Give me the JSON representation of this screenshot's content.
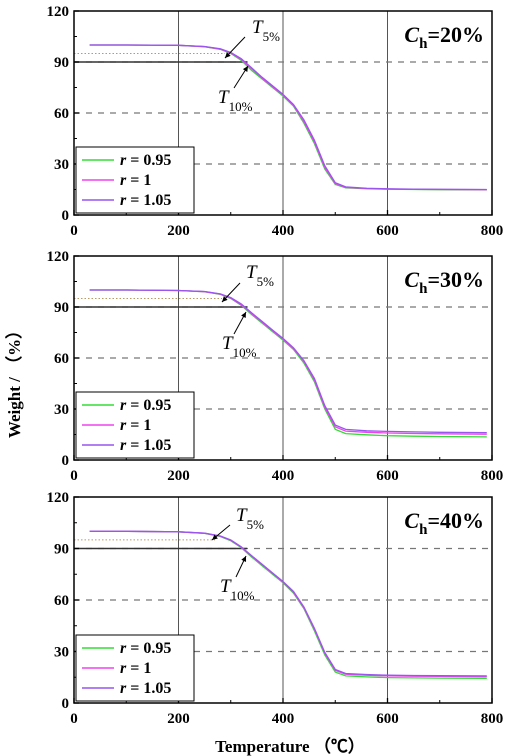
{
  "figure": {
    "ylabel": "Weight / （%）",
    "xlabel": "Temperature （℃）",
    "legend_prefix": "r",
    "panel_symbol": "C",
    "panel_symbol_sub": "h",
    "t5_symbol": "T",
    "t5_sub": "5%",
    "t10_symbol": "T",
    "t10_sub": "10%"
  },
  "colors": {
    "r_0_95": "#33dd33",
    "r_1": "#ee44ee",
    "r_1_05": "#9955ee",
    "grid_vertical": "#555555",
    "grid_dashed": "#777777",
    "ref_line_90": "#333333",
    "ref_line_95": "#bb9966"
  },
  "chart_data": [
    {
      "type": "line",
      "panel_value": "=20%",
      "xlim": [
        0,
        800
      ],
      "ylim": [
        0,
        120
      ],
      "xticks": [
        0,
        200,
        400,
        600,
        800
      ],
      "yticks": [
        0,
        30,
        60,
        90,
        120
      ],
      "grid": {
        "vertical_solid_at": [
          200,
          400,
          600
        ],
        "horizontal_dashed_at": [
          30,
          60,
          90
        ]
      },
      "legend_position": "bottom-left",
      "series": [
        {
          "name": "r = 0.95",
          "x": [
            30,
            100,
            200,
            250,
            280,
            300,
            320,
            340,
            360,
            380,
            400,
            420,
            440,
            460,
            480,
            500,
            520,
            560,
            600,
            650,
            700,
            790
          ],
          "y": [
            100,
            100,
            99.8,
            99,
            97.5,
            95,
            91,
            85,
            80,
            75,
            70,
            64,
            54,
            42,
            27,
            18,
            16,
            15.5,
            15.2,
            15,
            14.9,
            14.8
          ]
        },
        {
          "name": "r = 1",
          "x": [
            30,
            100,
            200,
            250,
            280,
            300,
            320,
            340,
            360,
            380,
            400,
            420,
            440,
            460,
            480,
            500,
            520,
            560,
            600,
            650,
            700,
            790
          ],
          "y": [
            100,
            100,
            99.8,
            99,
            97.6,
            95.3,
            91.5,
            86,
            80.5,
            75.5,
            70.5,
            64.5,
            55,
            43,
            28,
            18.5,
            16.2,
            15.6,
            15.3,
            15.1,
            15,
            14.9
          ]
        },
        {
          "name": "r = 1.05",
          "x": [
            30,
            100,
            200,
            250,
            280,
            300,
            320,
            340,
            360,
            380,
            400,
            420,
            440,
            460,
            480,
            500,
            520,
            560,
            600,
            650,
            700,
            790
          ],
          "y": [
            100,
            100,
            99.8,
            99.1,
            97.8,
            95.6,
            92,
            86.5,
            81,
            76,
            71,
            65,
            56,
            44,
            29,
            19,
            16.5,
            15.7,
            15.4,
            15.2,
            15.1,
            15
          ]
        }
      ]
    },
    {
      "type": "line",
      "panel_value": "=30%",
      "xlim": [
        0,
        800
      ],
      "ylim": [
        0,
        120
      ],
      "xticks": [
        0,
        200,
        400,
        600,
        800
      ],
      "yticks": [
        0,
        30,
        60,
        90,
        120
      ],
      "grid": {
        "vertical_solid_at": [
          200,
          400,
          600
        ],
        "horizontal_dashed_at": [
          30,
          60,
          90
        ]
      },
      "legend_position": "bottom-left",
      "series": [
        {
          "name": "r = 0.95",
          "x": [
            30,
            100,
            200,
            250,
            280,
            300,
            320,
            340,
            360,
            380,
            400,
            420,
            440,
            460,
            480,
            500,
            520,
            560,
            600,
            650,
            700,
            790
          ],
          "y": [
            100,
            100,
            99.7,
            99,
            97.5,
            95,
            91,
            85.5,
            80.5,
            75.5,
            70.5,
            65,
            57,
            46,
            30,
            18,
            15.5,
            14.8,
            14.3,
            14,
            13.8,
            13.6
          ]
        },
        {
          "name": "r = 1",
          "x": [
            30,
            100,
            200,
            250,
            280,
            300,
            320,
            340,
            360,
            380,
            400,
            420,
            440,
            460,
            480,
            500,
            520,
            560,
            600,
            650,
            700,
            790
          ],
          "y": [
            100,
            100,
            99.7,
            99,
            97.6,
            95.2,
            91.3,
            86,
            81,
            76,
            71,
            65.5,
            58,
            47,
            31,
            19.5,
            17,
            16.3,
            15.9,
            15.6,
            15.4,
            15.2
          ]
        },
        {
          "name": "r = 1.05",
          "x": [
            30,
            100,
            200,
            250,
            280,
            300,
            320,
            340,
            360,
            380,
            400,
            420,
            440,
            460,
            480,
            500,
            520,
            560,
            600,
            650,
            700,
            790
          ],
          "y": [
            100,
            100,
            99.7,
            99.1,
            97.7,
            95.5,
            91.8,
            86.5,
            81.5,
            76.5,
            71.5,
            66,
            58.5,
            48,
            32,
            20.5,
            18,
            17.2,
            16.8,
            16.5,
            16.3,
            16.1
          ]
        }
      ]
    },
    {
      "type": "line",
      "panel_value": "=40%",
      "xlim": [
        0,
        800
      ],
      "ylim": [
        0,
        120
      ],
      "xticks": [
        0,
        200,
        400,
        600,
        800
      ],
      "yticks": [
        0,
        30,
        60,
        90,
        120
      ],
      "grid": {
        "vertical_solid_at": [
          200,
          400,
          600
        ],
        "horizontal_dashed_at": [
          30,
          60,
          90
        ]
      },
      "legend_position": "bottom-left",
      "series": [
        {
          "name": "r = 0.95",
          "x": [
            30,
            100,
            200,
            250,
            280,
            300,
            320,
            340,
            360,
            380,
            400,
            420,
            440,
            460,
            480,
            500,
            520,
            560,
            600,
            650,
            700,
            790
          ],
          "y": [
            100,
            100,
            99.7,
            98.8,
            97,
            94.5,
            90.5,
            85,
            80,
            75,
            70,
            64,
            55,
            42,
            28,
            18,
            15.8,
            15.2,
            14.8,
            14.6,
            14.5,
            14.4
          ]
        },
        {
          "name": "r = 1",
          "x": [
            30,
            100,
            200,
            250,
            280,
            300,
            320,
            340,
            360,
            380,
            400,
            420,
            440,
            460,
            480,
            500,
            520,
            560,
            600,
            650,
            700,
            790
          ],
          "y": [
            100,
            100,
            99.7,
            98.9,
            97.2,
            94.8,
            90.8,
            85.5,
            80.5,
            75.5,
            70.5,
            64.5,
            55.5,
            43,
            29,
            19,
            16.8,
            16.2,
            15.8,
            15.6,
            15.5,
            15.4
          ]
        },
        {
          "name": "r = 1.05",
          "x": [
            30,
            100,
            200,
            250,
            280,
            300,
            320,
            340,
            360,
            380,
            400,
            420,
            440,
            460,
            480,
            500,
            520,
            560,
            600,
            650,
            700,
            790
          ],
          "y": [
            100,
            100,
            99.7,
            98.9,
            97.3,
            95,
            91,
            85.8,
            80.8,
            75.8,
            70.8,
            65,
            56,
            43.5,
            29.5,
            19.5,
            17.2,
            16.6,
            16.2,
            16,
            15.9,
            15.8
          ]
        }
      ]
    }
  ]
}
